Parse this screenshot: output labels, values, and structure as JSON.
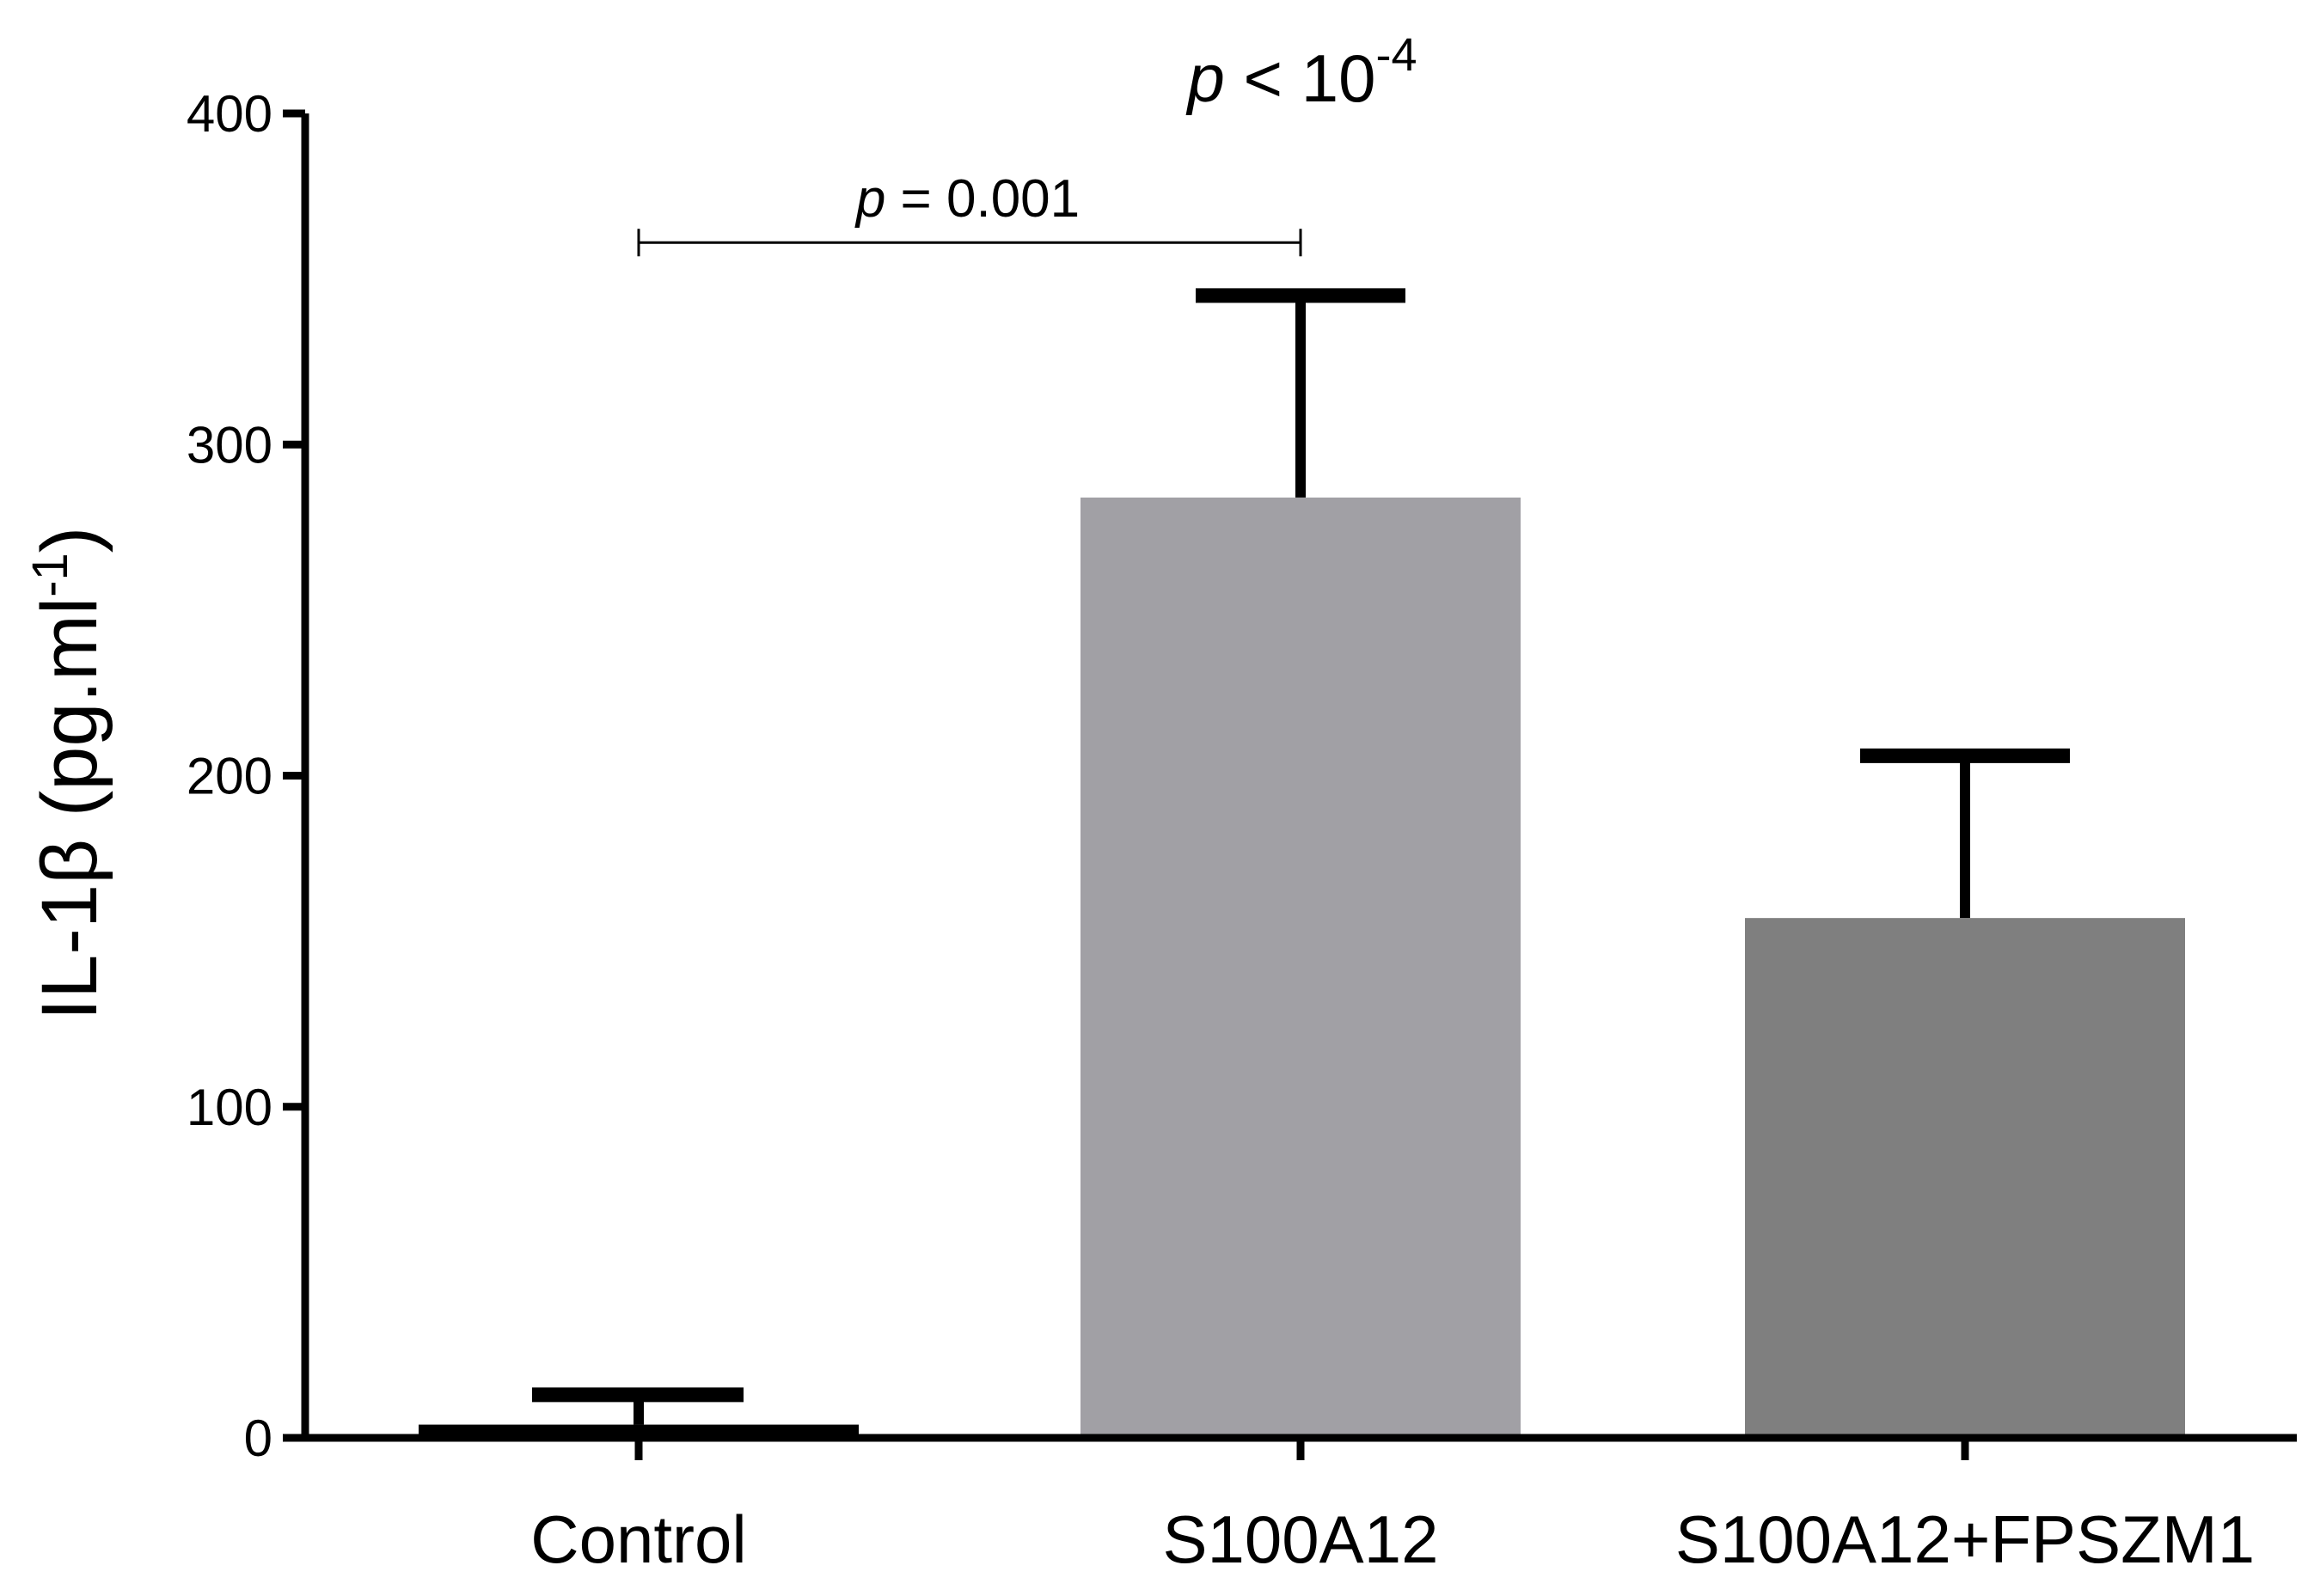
{
  "chart_data": {
    "type": "bar",
    "title": "",
    "xlabel": "",
    "ylabel": "IL-1β (pg.ml-1)",
    "ylabel_parts": {
      "main": "IL-1β (pg.ml",
      "superscript": "-1",
      "close": ")"
    },
    "ylim": [
      0,
      400
    ],
    "yticks": [
      0,
      100,
      200,
      300,
      400
    ],
    "grid": false,
    "categories": [
      "Control",
      "S100A12",
      "S100A12+FPSZM1"
    ],
    "values": [
      4,
      284,
      157
    ],
    "errors": [
      9,
      61,
      49
    ],
    "bar_colors": [
      "#000000",
      "#a1a0a5",
      "#7f7f7f"
    ],
    "annotations": {
      "overall": {
        "text": "p < 10-4",
        "p_symbol": "p",
        "relation": " < 10",
        "superscript": "-4"
      },
      "pairwise": {
        "text": "p = 0.001",
        "p_symbol": "p",
        "relation": " = 0.001",
        "from_category": 0,
        "to_category": 1,
        "value_level": 361
      }
    }
  }
}
